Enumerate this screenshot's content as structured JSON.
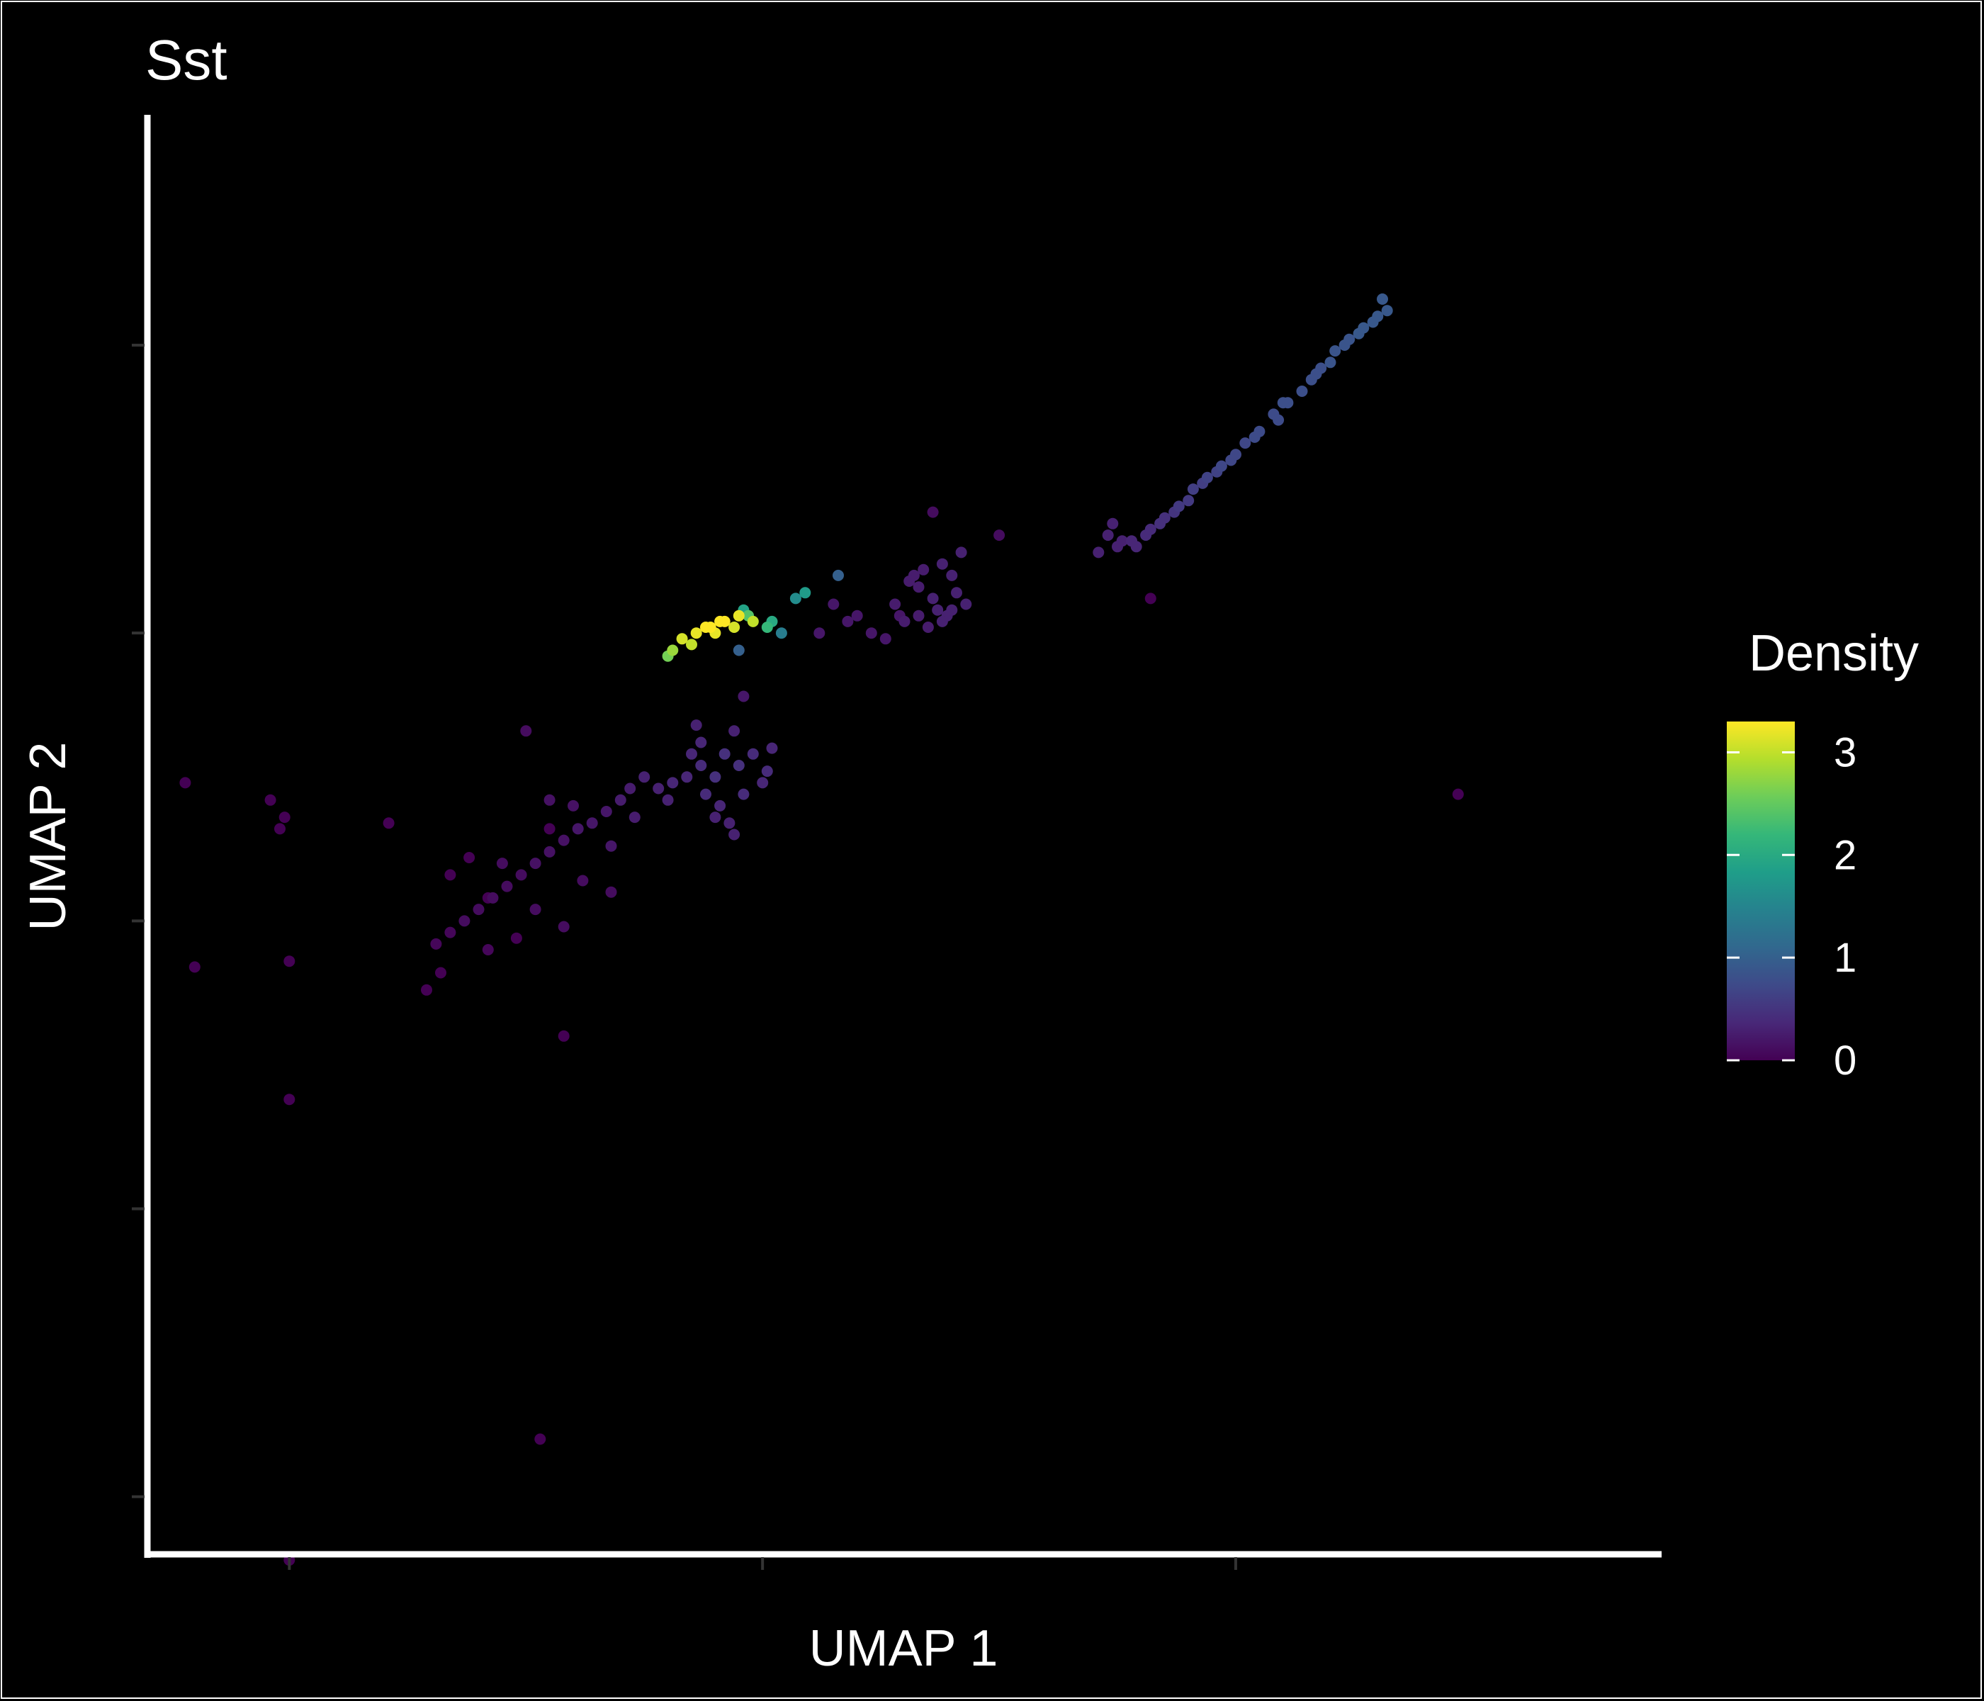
{
  "chart_data": {
    "type": "scatter",
    "title": "Sst",
    "xlabel": "UMAP 1",
    "ylabel": "UMAP 2",
    "xlim": [
      -13,
      19
    ],
    "ylim": [
      -11,
      14
    ],
    "x_ticks": [
      -10,
      0,
      10
    ],
    "y_ticks": [
      -10,
      -5,
      0,
      5,
      10
    ],
    "tick_labels_shown": false,
    "grid": false,
    "colorbar": {
      "title": "Density",
      "palette": "viridis",
      "min": 0,
      "max": 3.3,
      "ticks": [
        "0",
        "1",
        "2",
        "3"
      ],
      "colors": [
        "#440154",
        "#482878",
        "#3E4A89",
        "#31688E",
        "#26828E",
        "#1F9E89",
        "#35B779",
        "#6DCD59",
        "#B4DE2C",
        "#FDE725"
      ]
    },
    "legend_position": "right",
    "points": [
      [
        13.2,
        10.6,
        0.9
      ],
      [
        12.9,
        10.4,
        0.9
      ],
      [
        12.6,
        10.2,
        0.9
      ],
      [
        12.3,
        10.0,
        0.85
      ],
      [
        12.0,
        9.7,
        0.85
      ],
      [
        11.7,
        9.5,
        0.8
      ],
      [
        11.4,
        9.2,
        0.8
      ],
      [
        11.1,
        9.0,
        0.8
      ],
      [
        10.8,
        8.8,
        0.75
      ],
      [
        10.5,
        8.5,
        0.75
      ],
      [
        10.2,
        8.3,
        0.7
      ],
      [
        9.9,
        8.0,
        0.7
      ],
      [
        9.6,
        7.8,
        0.65
      ],
      [
        9.3,
        7.6,
        0.6
      ],
      [
        9.0,
        7.3,
        0.55
      ],
      [
        8.7,
        7.1,
        0.5
      ],
      [
        8.4,
        6.9,
        0.45
      ],
      [
        8.1,
        6.7,
        0.4
      ],
      [
        7.8,
        6.6,
        0.35
      ],
      [
        7.5,
        6.5,
        0.3
      ],
      [
        7.3,
        6.7,
        0.3
      ],
      [
        7.1,
        6.4,
        0.3
      ],
      [
        13.0,
        10.5,
        0.9
      ],
      [
        12.7,
        10.3,
        0.9
      ],
      [
        12.1,
        9.9,
        0.85
      ],
      [
        11.6,
        9.4,
        0.8
      ],
      [
        11.0,
        9.0,
        0.8
      ],
      [
        10.4,
        8.4,
        0.75
      ],
      [
        9.7,
        7.9,
        0.7
      ],
      [
        9.1,
        7.5,
        0.6
      ],
      [
        8.5,
        7.0,
        0.45
      ],
      [
        7.9,
        6.5,
        0.35
      ],
      [
        13.1,
        10.8,
        0.9
      ],
      [
        12.4,
        10.1,
        0.85
      ],
      [
        11.8,
        9.6,
        0.8
      ],
      [
        10.9,
        8.7,
        0.75
      ],
      [
        10.0,
        8.1,
        0.7
      ],
      [
        9.4,
        7.7,
        0.65
      ],
      [
        8.8,
        7.2,
        0.55
      ],
      [
        8.2,
        6.8,
        0.4
      ],
      [
        7.6,
        6.6,
        0.3
      ],
      [
        7.4,
        6.9,
        0.3
      ],
      [
        -1.7,
        4.9,
        3.1
      ],
      [
        -1.4,
        5.0,
        3.2
      ],
      [
        -1.1,
        5.1,
        3.3
      ],
      [
        -0.8,
        5.2,
        3.3
      ],
      [
        -0.5,
        5.3,
        3.2
      ],
      [
        -0.2,
        5.2,
        3.0
      ],
      [
        -1.5,
        4.8,
        3.0
      ],
      [
        -1.0,
        5.0,
        3.2
      ],
      [
        -0.6,
        5.1,
        3.1
      ],
      [
        -1.9,
        4.7,
        2.8
      ],
      [
        -2.0,
        4.6,
        2.6
      ],
      [
        0.1,
        5.1,
        2.2
      ],
      [
        0.4,
        5.0,
        1.4
      ],
      [
        -0.3,
        5.3,
        2.4
      ],
      [
        0.2,
        5.2,
        2.0
      ],
      [
        -0.5,
        4.7,
        1.0
      ],
      [
        0.7,
        5.6,
        1.6
      ],
      [
        0.9,
        5.7,
        1.8
      ],
      [
        1.6,
        6.0,
        1.0
      ],
      [
        -0.4,
        5.4,
        1.9
      ],
      [
        -1.2,
        5.1,
        3.3
      ],
      [
        -0.9,
        5.2,
        3.3
      ],
      [
        1.5,
        5.5,
        0.2
      ],
      [
        2.0,
        5.3,
        0.2
      ],
      [
        2.3,
        5.0,
        0.2
      ],
      [
        2.8,
        5.5,
        0.25
      ],
      [
        3.0,
        5.2,
        0.25
      ],
      [
        3.3,
        5.8,
        0.25
      ],
      [
        3.6,
        5.6,
        0.3
      ],
      [
        3.8,
        6.2,
        0.3
      ],
      [
        3.5,
        5.1,
        0.25
      ],
      [
        3.9,
        5.3,
        0.3
      ],
      [
        4.1,
        5.7,
        0.3
      ],
      [
        4.2,
        6.4,
        0.3
      ],
      [
        4.0,
        6.0,
        0.3
      ],
      [
        3.2,
        6.0,
        0.25
      ],
      [
        2.6,
        4.9,
        0.2
      ],
      [
        1.2,
        5.0,
        0.2
      ],
      [
        3.7,
        5.4,
        0.3
      ],
      [
        3.1,
        5.9,
        0.25
      ],
      [
        4.3,
        5.5,
        0.3
      ],
      [
        3.4,
        6.1,
        0.25
      ],
      [
        2.9,
        5.3,
        0.2
      ],
      [
        1.8,
        5.2,
        0.2
      ],
      [
        3.6,
        7.1,
        0.1
      ],
      [
        5.0,
        6.7,
        0.1
      ],
      [
        3.8,
        5.2,
        0.3
      ],
      [
        4.0,
        5.4,
        0.3
      ],
      [
        3.3,
        5.3,
        0.25
      ],
      [
        -1.0,
        2.5,
        0.45
      ],
      [
        -0.5,
        2.7,
        0.45
      ],
      [
        -0.2,
        2.9,
        0.4
      ],
      [
        0.1,
        2.6,
        0.4
      ],
      [
        0.2,
        3.0,
        0.35
      ],
      [
        -0.8,
        2.9,
        0.45
      ],
      [
        -1.3,
        2.7,
        0.4
      ],
      [
        -1.6,
        2.5,
        0.35
      ],
      [
        -1.9,
        2.4,
        0.35
      ],
      [
        -2.2,
        2.3,
        0.3
      ],
      [
        -2.5,
        2.5,
        0.3
      ],
      [
        -2.8,
        2.3,
        0.25
      ],
      [
        -3.0,
        2.1,
        0.25
      ],
      [
        -3.3,
        1.9,
        0.2
      ],
      [
        -3.6,
        1.7,
        0.2
      ],
      [
        -3.9,
        1.6,
        0.2
      ],
      [
        -4.2,
        1.4,
        0.15
      ],
      [
        -4.5,
        1.2,
        0.15
      ],
      [
        -4.8,
        1.0,
        0.15
      ],
      [
        -5.1,
        0.8,
        0.1
      ],
      [
        -5.4,
        0.6,
        0.1
      ],
      [
        -5.7,
        0.4,
        0.1
      ],
      [
        -6.0,
        0.2,
        0.1
      ],
      [
        -6.3,
        0.0,
        0.1
      ],
      [
        -6.6,
        -0.2,
        0.05
      ],
      [
        -6.9,
        -0.4,
        0.05
      ],
      [
        -1.2,
        2.2,
        0.4
      ],
      [
        -0.4,
        2.2,
        0.4
      ],
      [
        -0.9,
        2.0,
        0.35
      ],
      [
        -1.5,
        2.9,
        0.35
      ],
      [
        -0.6,
        3.3,
        0.3
      ],
      [
        -0.4,
        3.9,
        0.2
      ],
      [
        -1.3,
        3.1,
        0.35
      ],
      [
        0.0,
        2.4,
        0.35
      ],
      [
        -2.0,
        2.1,
        0.3
      ],
      [
        -2.7,
        1.8,
        0.25
      ],
      [
        -3.2,
        1.3,
        0.2
      ],
      [
        -4.0,
        2.0,
        0.15
      ],
      [
        -4.5,
        2.1,
        0.15
      ],
      [
        -5.5,
        1.0,
        0.1
      ],
      [
        -3.8,
        0.7,
        0.1
      ],
      [
        -3.2,
        0.5,
        0.1
      ],
      [
        -4.8,
        0.2,
        0.1
      ],
      [
        -5.8,
        -0.5,
        0.05
      ],
      [
        -4.2,
        -0.1,
        0.1
      ],
      [
        -1.0,
        1.8,
        0.3
      ],
      [
        -0.7,
        1.7,
        0.3
      ],
      [
        -5.0,
        3.3,
        0.1
      ],
      [
        -1.4,
        3.4,
        0.3
      ],
      [
        -0.6,
        1.5,
        0.3
      ],
      [
        -10.0,
        -11.1,
        0.0
      ],
      [
        -12.2,
        2.4,
        0.0
      ],
      [
        -12.0,
        -0.8,
        0.0
      ],
      [
        -10.4,
        2.1,
        0.0
      ],
      [
        -10.2,
        1.6,
        0.0
      ],
      [
        -10.1,
        1.8,
        0.0
      ],
      [
        -10.0,
        -0.7,
        0.0
      ],
      [
        -10.0,
        -3.1,
        0.0
      ],
      [
        -7.9,
        1.7,
        0.0
      ],
      [
        -7.1,
        -1.2,
        0.0
      ],
      [
        -6.6,
        0.8,
        0.0
      ],
      [
        -6.2,
        1.1,
        0.0
      ],
      [
        -5.8,
        0.4,
        0.0
      ],
      [
        -5.2,
        -0.3,
        0.0
      ],
      [
        -4.2,
        -2.0,
        0.0
      ],
      [
        -4.7,
        -9.0,
        0.0
      ],
      [
        8.2,
        5.6,
        0.0
      ],
      [
        14.7,
        2.2,
        0.0
      ],
      [
        -6.8,
        -0.9,
        0.0
      ],
      [
        -4.5,
        1.6,
        0.0
      ]
    ]
  }
}
